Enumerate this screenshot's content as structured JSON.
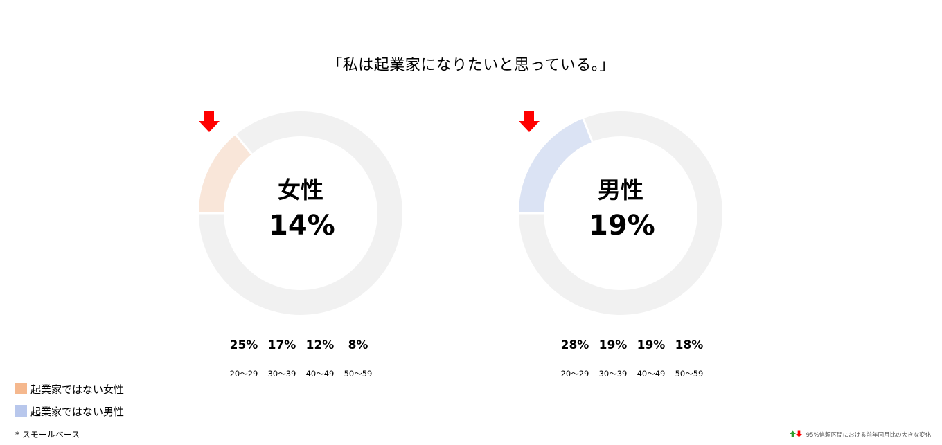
{
  "title": "「私は起業家になりたいと思っている。」",
  "chart_data": [
    {
      "type": "pie",
      "label": "女性",
      "value": 14,
      "value_text": "14%",
      "change": "down",
      "fill_color": "#f9e6d9",
      "track_color": "#f1f1f1",
      "age_groups": [
        {
          "range": "20〜29",
          "value": 25,
          "text": "25%"
        },
        {
          "range": "30〜39",
          "value": 17,
          "text": "17%"
        },
        {
          "range": "40〜49",
          "value": 12,
          "text": "12%"
        },
        {
          "range": "50〜59",
          "value": 8,
          "text": "8%"
        }
      ]
    },
    {
      "type": "pie",
      "label": "男性",
      "value": 19,
      "value_text": "19%",
      "change": "down",
      "fill_color": "#dbe3f4",
      "track_color": "#f1f1f1",
      "age_groups": [
        {
          "range": "20〜29",
          "value": 28,
          "text": "28%"
        },
        {
          "range": "30〜39",
          "value": 19,
          "text": "19%"
        },
        {
          "range": "40〜49",
          "value": 19,
          "text": "19%"
        },
        {
          "range": "50〜59",
          "value": 18,
          "text": "18%"
        }
      ]
    }
  ],
  "legend": [
    {
      "label": "起業家ではない女性",
      "color": "#f5b88e"
    },
    {
      "label": "起業家ではない男性",
      "color": "#b8c7ec"
    }
  ],
  "footnote": "* スモールベース",
  "significance_note": "95%信頼区間における前年同月比の大きな変化",
  "colors": {
    "arrow_down": "#ff0000",
    "arrow_up": "#2e9e2e"
  }
}
